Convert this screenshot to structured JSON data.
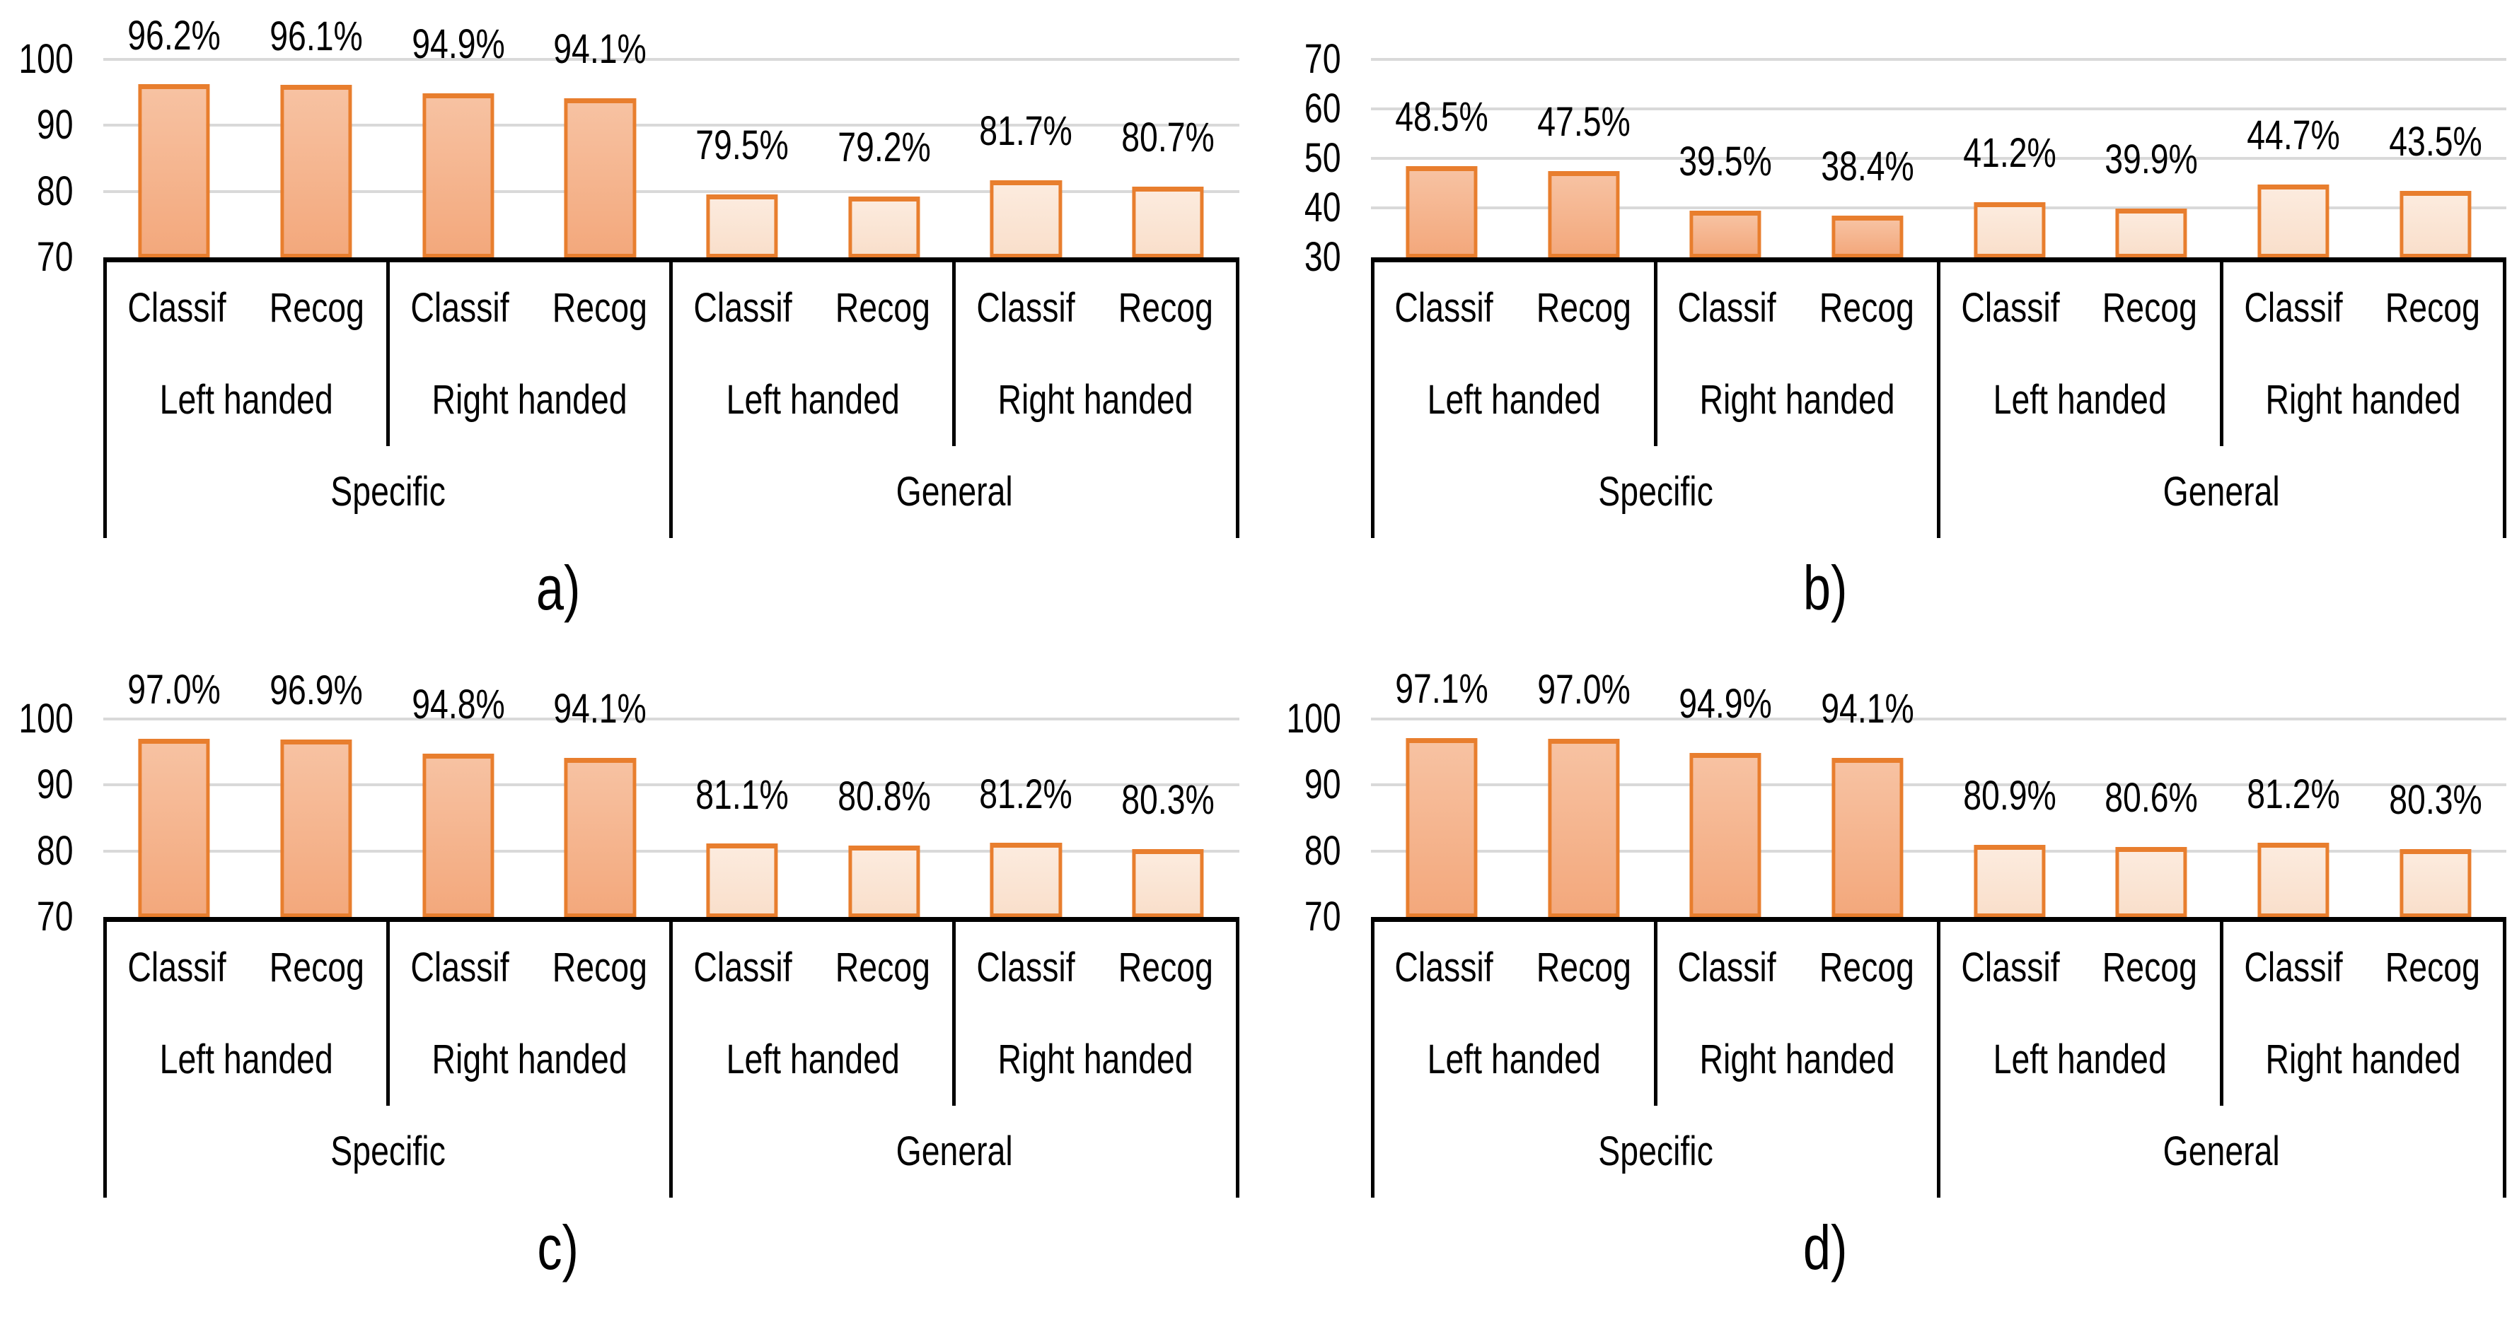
{
  "colors": {
    "bar_border": "#E87E2E",
    "bar_fill_specific_top": "#F7C2A2",
    "bar_fill_specific_bottom": "#F3A87C",
    "bar_fill_general_top": "#FCEBDE",
    "bar_fill_general_bottom": "#F9DFCB",
    "gridline": "#D9D9D9",
    "axis_line": "#000000",
    "text": "#000000"
  },
  "chart_data": [
    {
      "type": "bar",
      "panel_label": "a)",
      "ylim": [
        70,
        100
      ],
      "yticks": [
        100,
        90,
        80,
        70
      ],
      "grid": true,
      "legend": "none",
      "categories_level1": [
        "Classif",
        "Recog",
        "Classif",
        "Recog",
        "Classif",
        "Recog",
        "Classif",
        "Recog"
      ],
      "categories_level2": [
        "Left handed",
        "Right handed",
        "Left handed",
        "Right handed"
      ],
      "categories_level3": [
        "Specific",
        "General"
      ],
      "values": [
        96.2,
        96.1,
        94.9,
        94.1,
        79.5,
        79.2,
        81.7,
        80.7
      ],
      "labels": [
        "96.2%",
        "96.1%",
        "94.9%",
        "94.1%",
        "79.5%",
        "79.2%",
        "81.7%",
        "80.7%"
      ],
      "bar_styles": [
        "dark",
        "dark",
        "dark",
        "dark",
        "light",
        "light",
        "light",
        "light"
      ]
    },
    {
      "type": "bar",
      "panel_label": "b)",
      "ylim": [
        30,
        70
      ],
      "yticks": [
        70,
        60,
        50,
        40,
        30
      ],
      "grid": true,
      "legend": "none",
      "categories_level1": [
        "Classif",
        "Recog",
        "Classif",
        "Recog",
        "Classif",
        "Recog",
        "Classif",
        "Recog"
      ],
      "categories_level2": [
        "Left handed",
        "Right handed",
        "Left handed",
        "Right handed"
      ],
      "categories_level3": [
        "Specific",
        "General"
      ],
      "values": [
        48.5,
        47.5,
        39.5,
        38.4,
        41.2,
        39.9,
        44.7,
        43.5
      ],
      "labels": [
        "48.5%",
        "47.5%",
        "39.5%",
        "38.4%",
        "41.2%",
        "39.9%",
        "44.7%",
        "43.5%"
      ],
      "bar_styles": [
        "dark",
        "dark",
        "dark",
        "dark",
        "light",
        "light",
        "light",
        "light"
      ]
    },
    {
      "type": "bar",
      "panel_label": "c)",
      "ylim": [
        70,
        100
      ],
      "yticks": [
        100,
        90,
        80,
        70
      ],
      "grid": true,
      "legend": "none",
      "categories_level1": [
        "Classif",
        "Recog",
        "Classif",
        "Recog",
        "Classif",
        "Recog",
        "Classif",
        "Recog"
      ],
      "categories_level2": [
        "Left handed",
        "Right handed",
        "Left handed",
        "Right handed"
      ],
      "categories_level3": [
        "Specific",
        "General"
      ],
      "values": [
        97.0,
        96.9,
        94.8,
        94.1,
        81.1,
        80.8,
        81.2,
        80.3
      ],
      "labels": [
        "97.0%",
        "96.9%",
        "94.8%",
        "94.1%",
        "81.1%",
        "80.8%",
        "81.2%",
        "80.3%"
      ],
      "bar_styles": [
        "dark",
        "dark",
        "dark",
        "dark",
        "light",
        "light",
        "light",
        "light"
      ]
    },
    {
      "type": "bar",
      "panel_label": "d)",
      "ylim": [
        70,
        100
      ],
      "yticks": [
        100,
        90,
        80,
        70
      ],
      "grid": true,
      "legend": "none",
      "categories_level1": [
        "Classif",
        "Recog",
        "Classif",
        "Recog",
        "Classif",
        "Recog",
        "Classif",
        "Recog"
      ],
      "categories_level2": [
        "Left handed",
        "Right handed",
        "Left handed",
        "Right handed"
      ],
      "categories_level3": [
        "Specific",
        "General"
      ],
      "values": [
        97.1,
        97.0,
        94.9,
        94.1,
        80.9,
        80.6,
        81.2,
        80.3
      ],
      "labels": [
        "97.1%",
        "97.0%",
        "94.9%",
        "94.1%",
        "80.9%",
        "80.6%",
        "81.2%",
        "80.3%"
      ],
      "bar_styles": [
        "dark",
        "dark",
        "dark",
        "dark",
        "light",
        "light",
        "light",
        "light"
      ]
    }
  ]
}
